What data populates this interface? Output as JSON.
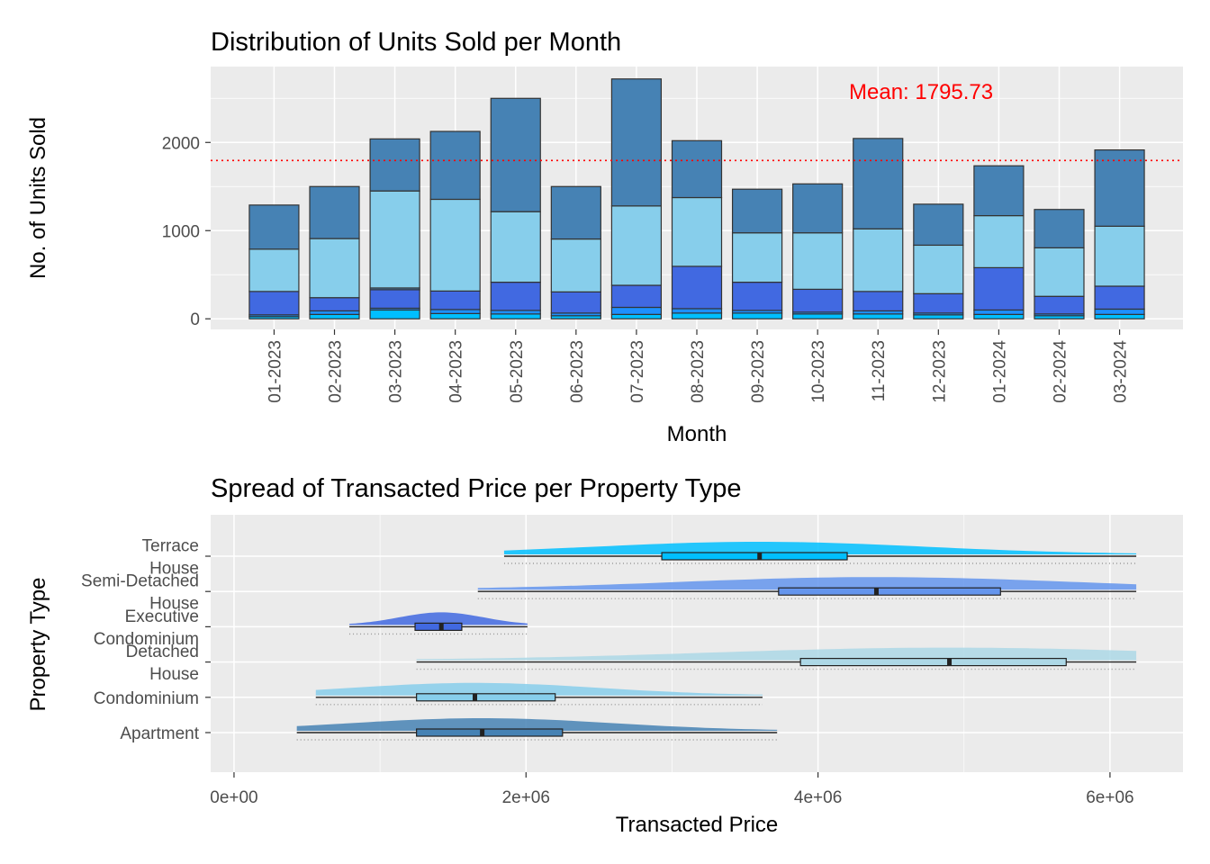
{
  "chart_data": [
    {
      "type": "bar",
      "stacked": true,
      "title": "Distribution of Units Sold per Month",
      "xlabel": "Month",
      "ylabel": "No. of Units Sold",
      "ylim": [
        -120,
        2860
      ],
      "yticks": [
        0,
        1000,
        2000
      ],
      "grid": true,
      "mean_line": {
        "value": 1795.73,
        "label": "Mean: 1795.73",
        "color": "#ff0000"
      },
      "categories": [
        "01-2023",
        "02-2023",
        "03-2023",
        "04-2023",
        "05-2023",
        "06-2023",
        "07-2023",
        "08-2023",
        "09-2023",
        "10-2023",
        "11-2023",
        "12-2023",
        "01-2024",
        "02-2024",
        "03-2024"
      ],
      "series": [
        {
          "color": "#00bfff",
          "values": [
            25,
            50,
            100,
            60,
            55,
            35,
            50,
            65,
            65,
            55,
            55,
            45,
            50,
            35,
            50
          ]
        },
        {
          "color": "#1e90ff",
          "values": [
            20,
            40,
            20,
            45,
            40,
            30,
            80,
            50,
            30,
            20,
            35,
            20,
            50,
            20,
            60
          ]
        },
        {
          "color": "#4169e1",
          "values": [
            265,
            150,
            210,
            210,
            320,
            240,
            250,
            480,
            320,
            260,
            220,
            220,
            480,
            200,
            260
          ]
        },
        {
          "color": "#4682b4",
          "values": [
            0,
            0,
            20,
            0,
            0,
            0,
            0,
            0,
            0,
            0,
            0,
            0,
            0,
            0,
            0
          ]
        },
        {
          "color": "#87ceeb",
          "values": [
            480,
            670,
            1100,
            1040,
            800,
            600,
            900,
            780,
            560,
            640,
            710,
            550,
            590,
            550,
            680
          ]
        },
        {
          "color": "#4682b4",
          "values": [
            500,
            590,
            590,
            770,
            1285,
            595,
            1440,
            645,
            495,
            555,
            1025,
            465,
            565,
            435,
            865
          ]
        }
      ]
    },
    {
      "type": "box",
      "title": "Spread of Transacted Price per Property Type",
      "xlabel": "Transacted Price",
      "ylabel": "Property Type",
      "xlim": [
        -160000,
        6500000
      ],
      "xticks": [
        0,
        2000000,
        4000000,
        6000000
      ],
      "xtick_labels": [
        "0e+00",
        "2e+06",
        "4e+06",
        "6e+06"
      ],
      "grid": true,
      "categories": [
        {
          "name": "Apartment",
          "lines": [
            "Apartment"
          ],
          "color": "#4682b4",
          "whisker_low": 430000,
          "q1": 1250000,
          "median": 1700000,
          "q3": 2250000,
          "whisker_high": 3720000
        },
        {
          "name": "Condominium",
          "lines": [
            "Condominium"
          ],
          "color": "#87ceeb",
          "whisker_low": 560000,
          "q1": 1250000,
          "median": 1650000,
          "q3": 2200000,
          "whisker_high": 3620000
        },
        {
          "name": "Detached House",
          "lines": [
            "Detached",
            "House"
          ],
          "color": "#add8e6",
          "whisker_low": 1250000,
          "q1": 3880000,
          "median": 4900000,
          "q3": 5700000,
          "whisker_high": 6180000
        },
        {
          "name": "Executive Condominium",
          "lines": [
            "Executive",
            "Condominium"
          ],
          "color": "#4169e1",
          "whisker_low": 790000,
          "q1": 1240000,
          "median": 1420000,
          "q3": 1560000,
          "whisker_high": 2010000
        },
        {
          "name": "Semi-Detached House",
          "lines": [
            "Semi-Detached",
            "House"
          ],
          "color": "#6495ed",
          "whisker_low": 1670000,
          "q1": 3730000,
          "median": 4400000,
          "q3": 5250000,
          "whisker_high": 6180000
        },
        {
          "name": "Terrace House",
          "lines": [
            "Terrace",
            "House"
          ],
          "color": "#00bfff",
          "whisker_low": 1850000,
          "q1": 2930000,
          "median": 3600000,
          "q3": 4200000,
          "whisker_high": 6180000
        }
      ]
    }
  ]
}
